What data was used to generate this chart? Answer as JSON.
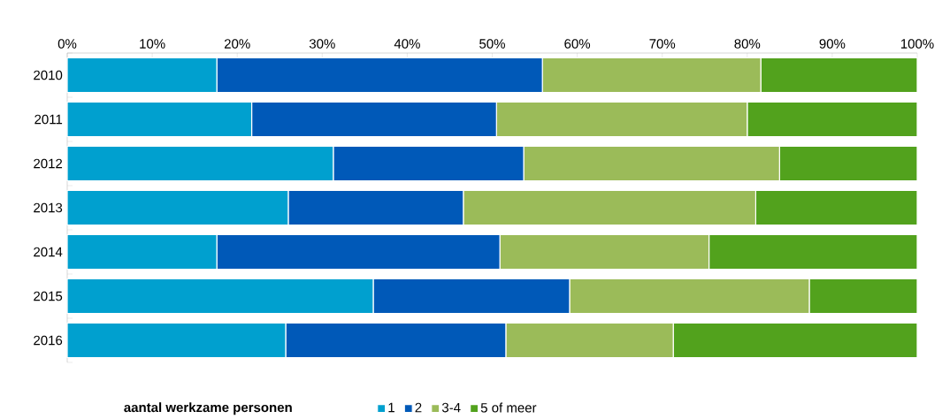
{
  "chart_data": {
    "type": "bar",
    "orientation": "horizontal",
    "stacked": true,
    "legend": "bottom",
    "legend_title": "aantal werkzame personen",
    "categories": [
      "2010",
      "2011",
      "2012",
      "2013",
      "2014",
      "2015",
      "2016"
    ],
    "xlim": [
      0,
      100
    ],
    "xticks": [
      {
        "value": 0,
        "label": "0%"
      },
      {
        "value": 10,
        "label": "10%"
      },
      {
        "value": 20,
        "label": "20%"
      },
      {
        "value": 30,
        "label": "30%"
      },
      {
        "value": 40,
        "label": "40%"
      },
      {
        "value": 50,
        "label": "50%"
      },
      {
        "value": 60,
        "label": "60%"
      },
      {
        "value": 70,
        "label": "70%"
      },
      {
        "value": 80,
        "label": "80%"
      },
      {
        "value": 90,
        "label": "90%"
      },
      {
        "value": 100,
        "label": "100%"
      }
    ],
    "series": [
      {
        "name": "1",
        "color": "#00a0cf",
        "values": [
          17.6,
          21.7,
          31.3,
          26.0,
          17.6,
          36.0,
          25.7
        ]
      },
      {
        "name": "2",
        "color": "#0059b8",
        "values": [
          38.3,
          28.8,
          22.4,
          20.6,
          33.3,
          23.1,
          25.9
        ]
      },
      {
        "name": "3-4",
        "color": "#9bbb59",
        "values": [
          25.7,
          29.5,
          30.1,
          34.4,
          24.6,
          28.2,
          19.7
        ]
      },
      {
        "name": "5 of meer",
        "color": "#52a21d",
        "values": [
          18.4,
          20.0,
          16.2,
          19.0,
          24.5,
          12.7,
          28.7
        ]
      }
    ]
  }
}
